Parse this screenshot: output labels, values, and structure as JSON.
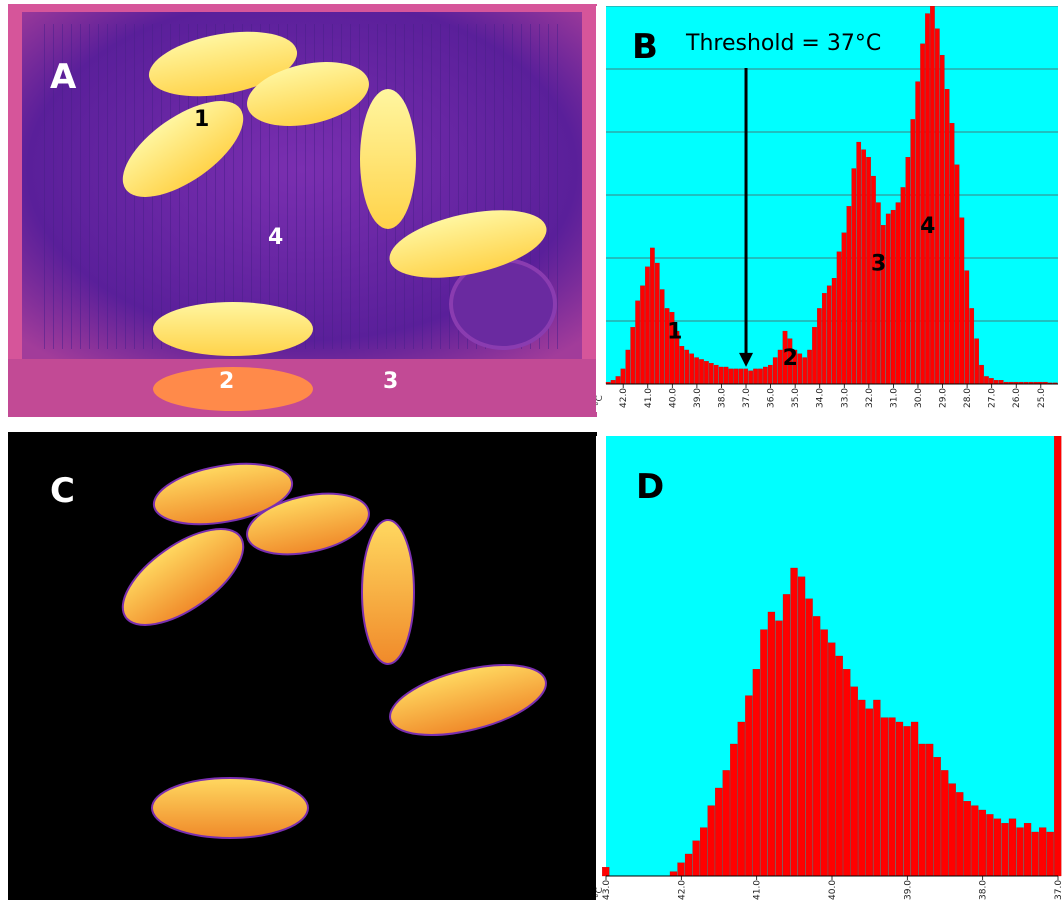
{
  "panels": {
    "A": {
      "label": "A",
      "region_labels": [
        "1",
        "2",
        "3",
        "4"
      ]
    },
    "C": {
      "label": "C"
    }
  },
  "colors": {
    "histogram_background": "#00ffff",
    "histogram_bars": "#ff0000",
    "thermal_cage": "#6b2aa8",
    "thermal_hot": "#ffe066"
  },
  "chart_data": [
    {
      "panel": "B",
      "type": "bar",
      "title": "B",
      "annotation": "Threshold = 37°C",
      "threshold_x": 37.0,
      "axis_unit": "°C",
      "x_direction": "descending",
      "xlim": [
        42.7,
        24.3
      ],
      "ylim": [
        0,
        100
      ],
      "grid": true,
      "tick_labels": [
        "42.0",
        "41.0",
        "40.0",
        "39.0",
        "38.0",
        "37.0",
        "36.0",
        "35.0",
        "34.0",
        "33.0",
        "32.0",
        "31.0",
        "30.0",
        "29.0",
        "28.0",
        "27.0",
        "26.0",
        "25.0"
      ],
      "peak_labels": [
        {
          "label": "1",
          "x": 39.9,
          "y": 12
        },
        {
          "label": "2",
          "x": 35.2,
          "y": 5
        },
        {
          "label": "3",
          "x": 31.6,
          "y": 30
        },
        {
          "label": "4",
          "x": 29.6,
          "y": 40
        }
      ],
      "x": [
        42.6,
        42.4,
        42.2,
        42.0,
        41.8,
        41.6,
        41.4,
        41.2,
        41.0,
        40.8,
        40.6,
        40.4,
        40.2,
        40.0,
        39.8,
        39.6,
        39.4,
        39.2,
        39.0,
        38.8,
        38.6,
        38.4,
        38.2,
        38.0,
        37.8,
        37.6,
        37.4,
        37.2,
        37.0,
        36.8,
        36.6,
        36.4,
        36.2,
        36.0,
        35.8,
        35.6,
        35.4,
        35.2,
        35.0,
        34.8,
        34.6,
        34.4,
        34.2,
        34.0,
        33.8,
        33.6,
        33.4,
        33.2,
        33.0,
        32.8,
        32.6,
        32.4,
        32.2,
        32.0,
        31.8,
        31.6,
        31.4,
        31.2,
        31.0,
        30.8,
        30.6,
        30.4,
        30.2,
        30.0,
        29.8,
        29.6,
        29.4,
        29.2,
        29.0,
        28.8,
        28.6,
        28.4,
        28.2,
        28.0,
        27.8,
        27.6,
        27.4,
        27.2,
        27.0,
        26.8,
        26.6,
        26.4,
        26.2,
        26.0,
        25.8,
        25.6,
        25.4,
        25.2,
        25.0,
        24.8,
        24.6,
        24.4
      ],
      "values": [
        0.5,
        1,
        2,
        4,
        9,
        15,
        22,
        26,
        31,
        36,
        32,
        25,
        20,
        19,
        14,
        10,
        9,
        8,
        7,
        6.5,
        6,
        5.5,
        5,
        4.5,
        4.5,
        4,
        4,
        4,
        4,
        3.5,
        4,
        4,
        4.5,
        5,
        7,
        9,
        14,
        12,
        9,
        8,
        7,
        9,
        15,
        20,
        24,
        26,
        28,
        35,
        40,
        47,
        57,
        64,
        62,
        60,
        55,
        48,
        42,
        45,
        46,
        48,
        52,
        60,
        70,
        80,
        90,
        98,
        100,
        94,
        87,
        78,
        69,
        58,
        44,
        30,
        20,
        12,
        5,
        2,
        1.5,
        1,
        1,
        0.5,
        0.5,
        0.5,
        0.5,
        0.5,
        0.5,
        0.5,
        0.5,
        0.5,
        0.3,
        0.3
      ]
    },
    {
      "panel": "D",
      "type": "bar",
      "title": "D",
      "axis_unit": "°C",
      "x_direction": "descending",
      "xlim": [
        43.0,
        37.0
      ],
      "ylim": [
        0,
        100
      ],
      "grid": false,
      "tick_labels": [
        "43.0",
        "42.0",
        "41.0",
        "40.0",
        "39.0",
        "38.0",
        "37.0"
      ],
      "x": [
        43.0,
        42.9,
        42.8,
        42.7,
        42.6,
        42.5,
        42.4,
        42.3,
        42.2,
        42.1,
        42.0,
        41.9,
        41.8,
        41.7,
        41.6,
        41.5,
        41.4,
        41.3,
        41.2,
        41.1,
        41.0,
        40.9,
        40.8,
        40.7,
        40.6,
        40.5,
        40.4,
        40.3,
        40.2,
        40.1,
        40.0,
        39.9,
        39.8,
        39.7,
        39.6,
        39.5,
        39.4,
        39.3,
        39.2,
        39.1,
        39.0,
        38.9,
        38.8,
        38.7,
        38.6,
        38.5,
        38.4,
        38.3,
        38.2,
        38.1,
        38.0,
        37.9,
        37.8,
        37.7,
        37.6,
        37.5,
        37.4,
        37.3,
        37.2,
        37.1,
        37.0
      ],
      "values": [
        2,
        0,
        0,
        0,
        0,
        0,
        0,
        0,
        0,
        1,
        3,
        5,
        8,
        11,
        16,
        20,
        24,
        30,
        35,
        41,
        47,
        56,
        60,
        58,
        64,
        70,
        68,
        63,
        59,
        56,
        53,
        50,
        47,
        43,
        40,
        38,
        40,
        36,
        36,
        35,
        34,
        35,
        30,
        30,
        27,
        24,
        21,
        19,
        17,
        16,
        15,
        14,
        13,
        12,
        13,
        11,
        12,
        10,
        11,
        10,
        100
      ]
    }
  ]
}
